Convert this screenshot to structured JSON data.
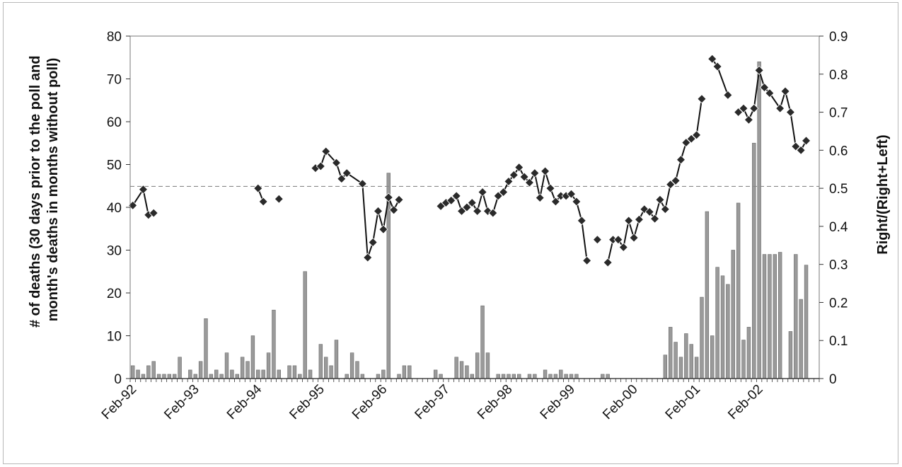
{
  "chart_data": {
    "type": "bar+line",
    "title": "",
    "xlabel": "",
    "ylabel_left": "# of deaths (30 days prior to the poll and month's deaths in months without poll)",
    "ylabel_left_lines": [
      "# of deaths (30 days prior to the poll and",
      "month's deaths in months without poll)"
    ],
    "ylabel_right": "Right/(Right+Left)",
    "ylim_left": [
      0,
      80
    ],
    "ylim_right": [
      0,
      0.9
    ],
    "yticks_left": [
      "0",
      "10",
      "20",
      "30",
      "40",
      "50",
      "60",
      "70",
      "80"
    ],
    "yticks_right": [
      "0",
      "0.1",
      "0.2",
      "0.3",
      "0.4",
      "0.5",
      "0.6",
      "0.7",
      "0.8",
      "0.9"
    ],
    "x_months": 132,
    "x_start": "Feb-92",
    "x_tick_labels": [
      "Feb-92",
      "Feb-93",
      "Feb-94",
      "Feb-95",
      "Feb-96",
      "Feb-97",
      "Feb-98",
      "Feb-99",
      "Feb-00",
      "Feb-01",
      "Feb-02"
    ],
    "reference_line_right": 0.505,
    "grid": false,
    "legend": "none",
    "colors": {
      "bars": "#9a9a9a",
      "bar_edge": "#6a6a6a",
      "line": "#111111",
      "marker": "#2a2a2a",
      "reference": "#888888"
    },
    "series": [
      {
        "type": "bar",
        "axis": "left",
        "values": [
          3,
          2,
          1,
          3,
          4,
          1,
          1,
          1,
          1,
          5,
          0,
          2,
          1,
          4,
          14,
          1,
          2,
          1,
          6,
          2,
          1,
          5,
          4,
          10,
          2,
          2,
          6,
          16,
          2,
          0,
          3,
          3,
          1,
          25,
          2,
          0,
          8,
          5,
          3,
          9,
          0,
          1,
          6,
          4,
          1,
          0,
          0,
          1,
          2,
          48,
          0,
          1,
          3,
          3,
          0,
          0,
          0,
          0,
          2,
          1,
          0,
          0,
          5,
          4,
          3,
          1,
          6,
          17,
          6,
          0,
          1,
          1,
          1,
          1,
          1,
          0,
          1,
          1,
          0,
          2,
          1,
          1,
          2,
          1,
          1,
          1,
          0,
          0,
          0,
          0,
          1,
          1,
          0,
          0,
          0,
          0,
          0,
          0,
          0,
          0,
          0,
          0,
          5.5,
          12,
          8.5,
          5,
          10.5,
          8,
          5,
          19,
          39,
          10,
          26,
          24,
          22,
          30,
          41,
          9,
          12,
          55,
          74,
          29,
          29,
          29,
          29.5,
          0,
          11,
          29,
          18.5,
          26.5
        ]
      },
      {
        "type": "line",
        "axis": "right",
        "points": [
          [
            0,
            0.455
          ],
          [
            2,
            0.497
          ],
          [
            3,
            0.43
          ],
          [
            4,
            0.435
          ],
          [
            24,
            0.5
          ],
          [
            25,
            0.465
          ],
          [
            28,
            0.472
          ],
          [
            35,
            0.553
          ],
          [
            36,
            0.558
          ],
          [
            37,
            0.597
          ],
          [
            39,
            0.567
          ],
          [
            40,
            0.525
          ],
          [
            41,
            0.54
          ],
          [
            44,
            0.512
          ],
          [
            45,
            0.318
          ],
          [
            46,
            0.358
          ],
          [
            47,
            0.44
          ],
          [
            48,
            0.392
          ],
          [
            49,
            0.476
          ],
          [
            50,
            0.443
          ],
          [
            51,
            0.47
          ],
          [
            59,
            0.453
          ],
          [
            60,
            0.462
          ],
          [
            61,
            0.468
          ],
          [
            62,
            0.48
          ],
          [
            63,
            0.44
          ],
          [
            64,
            0.45
          ],
          [
            65,
            0.462
          ],
          [
            66,
            0.44
          ],
          [
            67,
            0.49
          ],
          [
            68,
            0.44
          ],
          [
            69,
            0.435
          ],
          [
            70,
            0.48
          ],
          [
            71,
            0.49
          ],
          [
            72,
            0.518
          ],
          [
            73,
            0.535
          ],
          [
            74,
            0.555
          ],
          [
            75,
            0.53
          ],
          [
            76,
            0.515
          ],
          [
            77,
            0.54
          ],
          [
            78,
            0.475
          ],
          [
            79,
            0.545
          ],
          [
            80,
            0.5
          ],
          [
            81,
            0.465
          ],
          [
            82,
            0.48
          ],
          [
            83,
            0.48
          ],
          [
            84,
            0.485
          ],
          [
            85,
            0.465
          ],
          [
            86,
            0.415
          ],
          [
            87,
            0.31
          ],
          [
            89,
            0.365
          ],
          [
            91,
            0.305
          ],
          [
            92,
            0.365
          ],
          [
            93,
            0.365
          ],
          [
            94,
            0.345
          ],
          [
            95,
            0.415
          ],
          [
            96,
            0.37
          ],
          [
            97,
            0.418
          ],
          [
            98,
            0.445
          ],
          [
            99,
            0.438
          ],
          [
            100,
            0.42
          ],
          [
            101,
            0.47
          ],
          [
            102,
            0.445
          ],
          [
            103,
            0.51
          ],
          [
            104,
            0.52
          ],
          [
            105,
            0.575
          ],
          [
            106,
            0.62
          ],
          [
            107,
            0.63
          ],
          [
            108,
            0.64
          ],
          [
            109,
            0.735
          ],
          [
            111,
            0.84
          ],
          [
            112,
            0.82
          ],
          [
            114,
            0.745
          ],
          [
            116,
            0.7
          ],
          [
            117,
            0.71
          ],
          [
            118,
            0.68
          ],
          [
            119,
            0.71
          ],
          [
            120,
            0.81
          ],
          [
            121,
            0.765
          ],
          [
            122,
            0.75
          ],
          [
            124,
            0.71
          ],
          [
            125,
            0.755
          ],
          [
            126,
            0.7
          ],
          [
            127,
            0.61
          ],
          [
            128,
            0.6
          ],
          [
            129,
            0.625
          ]
        ],
        "break_before_x": [
          24,
          28,
          35,
          59,
          89,
          91,
          111,
          116
        ]
      }
    ]
  }
}
